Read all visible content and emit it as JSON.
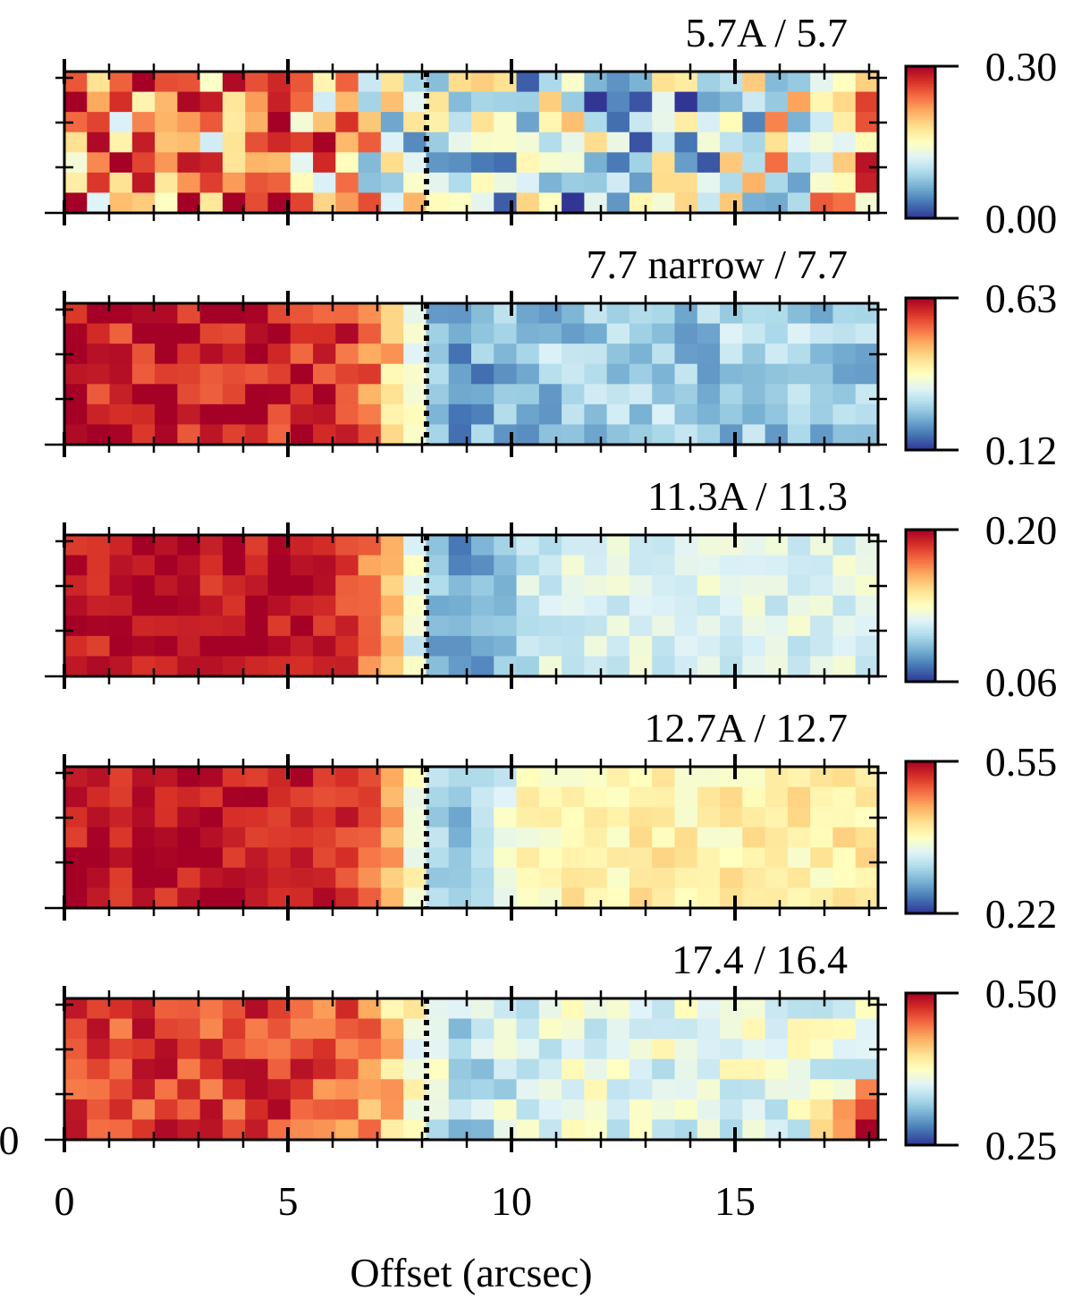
{
  "chart_data": {
    "type": "heatmap",
    "figure": {
      "xlabel": "Offset (arcsec)",
      "x_ticks": [
        "0",
        "5",
        "10",
        "15"
      ],
      "x_tick_values": [
        0,
        5,
        10,
        15
      ],
      "xlim": [
        0,
        18.2
      ],
      "y_partial_label": "0",
      "boundary_offset": 8.1,
      "colormap": "RdYlBu_r",
      "grid_columns": 36,
      "grid_rows": 7
    },
    "panels": [
      {
        "title": "5.7A / 5.7",
        "clim": [
          0.0,
          0.3
        ],
        "clim_labels": [
          "0.30",
          "0.00"
        ],
        "profile": {
          "left": 0.73,
          "right": 0.3,
          "sharpness": 0.5,
          "noise": 0.5,
          "dip": 0.0,
          "right_rise": 0.35,
          "hot_corner": 0.0
        }
      },
      {
        "title": "7.7 narrow / 7.7",
        "clim": [
          0.12,
          0.63
        ],
        "clim_labels": [
          "0.63",
          "0.12"
        ],
        "profile": {
          "left": 0.93,
          "right": 0.28,
          "sharpness": 1.2,
          "noise": 0.12,
          "dip": 0.12,
          "right_rise": 0.0,
          "hot_corner": 0.0
        }
      },
      {
        "title": "11.3A / 11.3",
        "clim": [
          0.06,
          0.2
        ],
        "clim_labels": [
          "0.20",
          "0.06"
        ],
        "profile": {
          "left": 0.95,
          "right": 0.4,
          "sharpness": 1.0,
          "noise": 0.08,
          "dip": 0.3,
          "right_rise": 0.0,
          "hot_corner": 0.0
        }
      },
      {
        "title": "12.7A / 12.7",
        "clim": [
          0.22,
          0.55
        ],
        "clim_labels": [
          "0.55",
          "0.22"
        ],
        "profile": {
          "left": 0.95,
          "right": 0.55,
          "sharpness": 1.0,
          "noise": 0.08,
          "dip": 0.35,
          "right_rise": 0.0,
          "hot_corner": 0.0
        }
      },
      {
        "title": "17.4 / 16.4",
        "clim": [
          0.25,
          0.5
        ],
        "clim_labels": [
          "0.50",
          "0.25"
        ],
        "profile": {
          "left": 0.88,
          "right": 0.42,
          "sharpness": 0.9,
          "noise": 0.12,
          "dip": 0.15,
          "right_rise": 0.0,
          "hot_corner": 0.9
        }
      }
    ]
  }
}
